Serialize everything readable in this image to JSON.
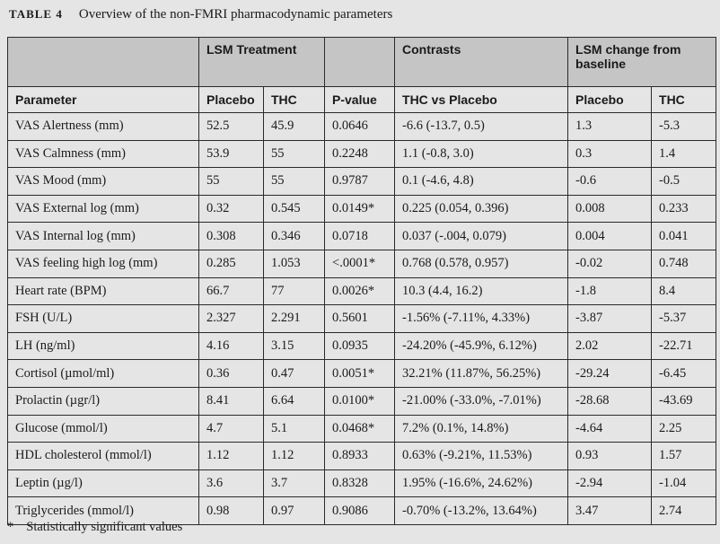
{
  "caption": {
    "label": "TABLE 4",
    "title": "Overview of the non-FMRI pharmacodynamic parameters"
  },
  "groups": {
    "empty1": "",
    "treatment": "LSM Treatment",
    "empty2": "",
    "contrasts": "Contrasts",
    "change": "LSM change from baseline"
  },
  "columns": {
    "parameter": "Parameter",
    "placebo": "Placebo",
    "thc": "THC",
    "pvalue": "P-value",
    "contrast": "THC vs Placebo",
    "change_placebo": "Placebo",
    "change_thc": "THC"
  },
  "rows": [
    {
      "parameter": "VAS Alertness (mm)",
      "placebo": "52.5",
      "thc": "45.9",
      "p": "0.0646",
      "contrast": "-6.6 (-13.7, 0.5)",
      "cp": "1.3",
      "ct": "-5.3"
    },
    {
      "parameter": "VAS Calmness (mm)",
      "placebo": "53.9",
      "thc": "55",
      "p": "0.2248",
      "contrast": "1.1 (-0.8, 3.0)",
      "cp": "0.3",
      "ct": "1.4"
    },
    {
      "parameter": "VAS Mood (mm)",
      "placebo": "55",
      "thc": "55",
      "p": "0.9787",
      "contrast": "0.1 (-4.6, 4.8)",
      "cp": "-0.6",
      "ct": "-0.5"
    },
    {
      "parameter": "VAS External log (mm)",
      "placebo": "0.32",
      "thc": "0.545",
      "p": "0.0149*",
      "contrast": "0.225 (0.054, 0.396)",
      "cp": "0.008",
      "ct": "0.233"
    },
    {
      "parameter": "VAS Internal log (mm)",
      "placebo": "0.308",
      "thc": "0.346",
      "p": "0.0718",
      "contrast": "0.037 (-.004, 0.079)",
      "cp": "0.004",
      "ct": "0.041"
    },
    {
      "parameter": "VAS feeling high log (mm)",
      "placebo": "0.285",
      "thc": "1.053",
      "p": "<.0001*",
      "contrast": "0.768 (0.578, 0.957)",
      "cp": "-0.02",
      "ct": "0.748"
    },
    {
      "parameter": "Heart rate (BPM)",
      "placebo": "66.7",
      "thc": "77",
      "p": "0.0026*",
      "contrast": "10.3 (4.4, 16.2)",
      "cp": "-1.8",
      "ct": "8.4"
    },
    {
      "parameter": "FSH (U/L)",
      "placebo": "2.327",
      "thc": "2.291",
      "p": "0.5601",
      "contrast": "-1.56% (-7.11%, 4.33%)",
      "cp": "-3.87",
      "ct": "-5.37"
    },
    {
      "parameter": "LH (ng/ml)",
      "placebo": "4.16",
      "thc": "3.15",
      "p": "0.0935",
      "contrast": "-24.20% (-45.9%, 6.12%)",
      "cp": "2.02",
      "ct": "-22.71"
    },
    {
      "parameter": "Cortisol (µmol/ml)",
      "placebo": "0.36",
      "thc": "0.47",
      "p": "0.0051*",
      "contrast": "32.21% (11.87%, 56.25%)",
      "cp": "-29.24",
      "ct": "-6.45"
    },
    {
      "parameter": "Prolactin (µgr/l)",
      "placebo": "8.41",
      "thc": "6.64",
      "p": "0.0100*",
      "contrast": "-21.00% (-33.0%, -7.01%)",
      "cp": "-28.68",
      "ct": "-43.69"
    },
    {
      "parameter": "Glucose (mmol/l)",
      "placebo": "4.7",
      "thc": "5.1",
      "p": "0.0468*",
      "contrast": "7.2% (0.1%, 14.8%)",
      "cp": "-4.64",
      "ct": "2.25"
    },
    {
      "parameter": "HDL cholesterol (mmol/l)",
      "placebo": "1.12",
      "thc": "1.12",
      "p": "0.8933",
      "contrast": "0.63% (-9.21%, 11.53%)",
      "cp": "0.93",
      "ct": "1.57"
    },
    {
      "parameter": "Leptin (µg/l)",
      "placebo": "3.6",
      "thc": "3.7",
      "p": "0.8328",
      "contrast": "1.95% (-16.6%, 24.62%)",
      "cp": "-2.94",
      "ct": "-1.04"
    },
    {
      "parameter": "Triglycerides (mmol/l)",
      "placebo": "0.98",
      "thc": "0.97",
      "p": "0.9086",
      "contrast": "-0.70% (-13.2%, 13.64%)",
      "cp": "3.47",
      "ct": "2.74"
    }
  ],
  "footnote": {
    "mark": "*",
    "text": "Statistically significant values"
  }
}
